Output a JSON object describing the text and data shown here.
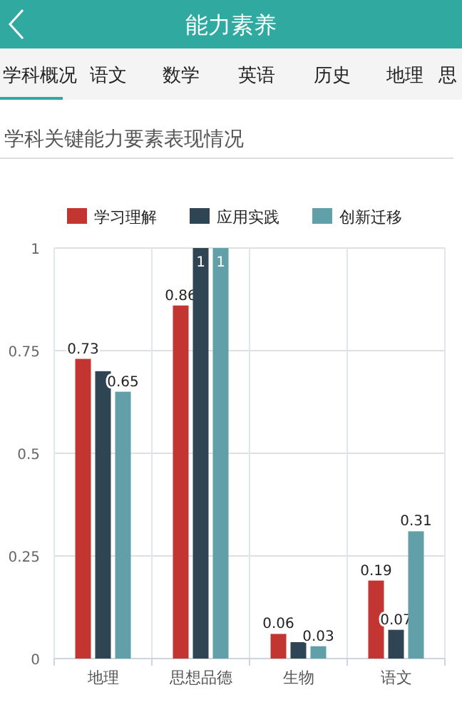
{
  "chart_data": {
    "type": "bar",
    "title": "学科关键能力要素表现情况",
    "annotations": [
      "能力素养",
      "学科概况",
      "语文",
      "数学",
      "英语",
      "历史",
      "地理",
      "思"
    ],
    "categories": [
      "地理",
      "思想品德",
      "生物",
      "语文"
    ],
    "series": [
      {
        "name": "学习理解",
        "color": "#c23531",
        "values": [
          0.73,
          0.86,
          0.06,
          0.19
        ],
        "value_labels": [
          "0.73",
          "0.86",
          "0.06",
          "0.19"
        ]
      },
      {
        "name": "应用实践",
        "color": "#2f4554",
        "values": [
          0.7,
          1,
          0.04,
          0.07
        ],
        "value_labels": [
          null,
          "1",
          null,
          "0.07"
        ]
      },
      {
        "name": "创新迁移",
        "color": "#61a0a8",
        "values": [
          0.65,
          1,
          0.03,
          0.31
        ],
        "value_labels": [
          "0.65",
          "1",
          "0.03",
          "0.31"
        ]
      }
    ],
    "ylim": [
      0,
      1
    ],
    "yticks": [
      0,
      0.25,
      0.5,
      0.75,
      1
    ],
    "grid": true,
    "legend": "top"
  }
}
